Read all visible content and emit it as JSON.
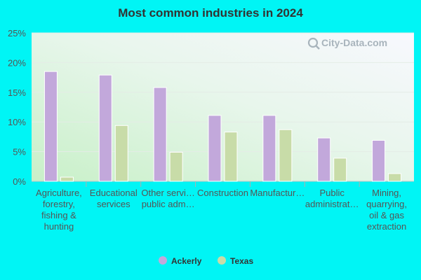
{
  "chart_data": {
    "type": "bar",
    "title": "Most common industries in 2024",
    "categories": [
      [
        "Agriculture,",
        "forestry,",
        "fishing &",
        "hunting"
      ],
      [
        "Educational",
        "services"
      ],
      [
        "Other servi…",
        "public adm…"
      ],
      [
        "Construction"
      ],
      [
        "Manufactur…"
      ],
      [
        "Public",
        "administrat…"
      ],
      [
        "Mining,",
        "quarrying,",
        "oil & gas",
        "extraction"
      ]
    ],
    "series": [
      {
        "name": "Ackerly",
        "color": "#c2a8db",
        "values": [
          18.5,
          17.9,
          15.8,
          11.1,
          11.1,
          7.3,
          6.9
        ]
      },
      {
        "name": "Texas",
        "color": "#c8dca8",
        "values": [
          0.7,
          9.4,
          4.9,
          8.3,
          8.7,
          3.9,
          1.3
        ]
      }
    ],
    "ylim": [
      0,
      25
    ],
    "yticks": [
      0,
      5,
      10,
      15,
      20,
      25
    ],
    "ytick_labels": [
      "0%",
      "5%",
      "10%",
      "15%",
      "20%",
      "25%"
    ],
    "grid": true,
    "legend_position": "bottom"
  },
  "watermark": "City-Data.com"
}
